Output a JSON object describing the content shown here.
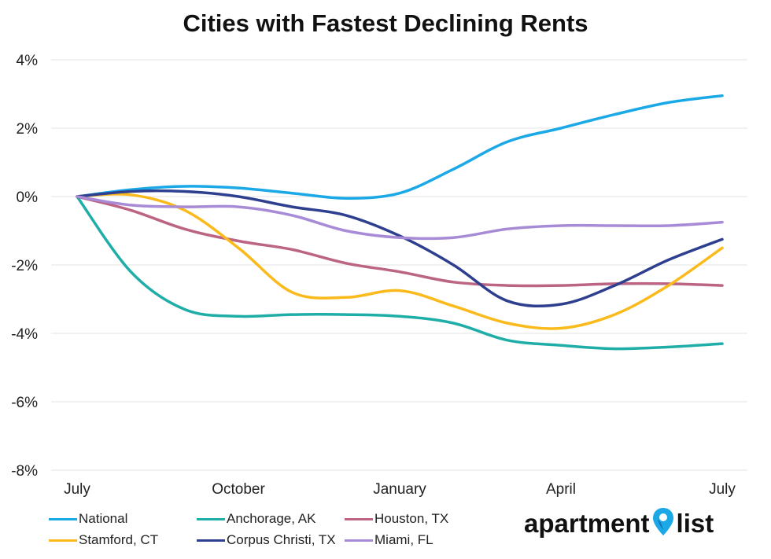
{
  "chart_data": {
    "type": "line",
    "title": "Cities with Fastest Declining Rents",
    "x_ticks": [
      "July",
      "October",
      "January",
      "April",
      "July"
    ],
    "ylim": [
      -8,
      4
    ],
    "y_ticks": [
      4,
      2,
      0,
      -2,
      -4,
      -6,
      -8
    ],
    "y_tick_labels": [
      "4%",
      "2%",
      "0%",
      "-2%",
      "-4%",
      "-6%",
      "-8%"
    ],
    "grid": true,
    "legend_position": "bottom",
    "x_months": [
      0,
      1,
      2,
      3,
      4,
      5,
      6,
      7,
      8,
      9,
      10,
      11,
      12
    ],
    "series": [
      {
        "name": "National",
        "color": "#1aa9e6",
        "values": [
          0,
          0.2,
          0.3,
          0.25,
          0.1,
          -0.05,
          0.1,
          0.8,
          1.6,
          2.0,
          2.4,
          2.75,
          2.95
        ]
      },
      {
        "name": "Anchorage, AK",
        "color": "#1fada8",
        "values": [
          0,
          -2.2,
          -3.3,
          -3.5,
          -3.45,
          -3.45,
          -3.5,
          -3.7,
          -4.2,
          -4.35,
          -4.45,
          -4.4,
          -4.3
        ]
      },
      {
        "name": "Houston, TX",
        "color": "#bb6484",
        "values": [
          0,
          -0.4,
          -0.95,
          -1.3,
          -1.55,
          -1.95,
          -2.2,
          -2.5,
          -2.6,
          -2.6,
          -2.55,
          -2.55,
          -2.6
        ]
      },
      {
        "name": "Stamford, CT",
        "color": "#fbba1c",
        "values": [
          0,
          0.05,
          -0.4,
          -1.5,
          -2.8,
          -2.95,
          -2.75,
          -3.2,
          -3.7,
          -3.85,
          -3.45,
          -2.6,
          -1.5
        ]
      },
      {
        "name": "Corpus Christi, TX",
        "color": "#2e3f8f",
        "values": [
          0,
          0.15,
          0.15,
          0,
          -0.3,
          -0.55,
          -1.15,
          -2.0,
          -3.05,
          -3.15,
          -2.6,
          -1.85,
          -1.25
        ]
      },
      {
        "name": "Miami, FL",
        "color": "#a78bd7",
        "values": [
          0,
          -0.25,
          -0.3,
          -0.3,
          -0.55,
          -1.0,
          -1.2,
          -1.2,
          -0.95,
          -0.85,
          -0.85,
          -0.85,
          -0.75
        ]
      }
    ]
  },
  "legend": {
    "items": [
      {
        "label": "National",
        "color": "#1aa9e6"
      },
      {
        "label": "Anchorage, AK",
        "color": "#1fada8"
      },
      {
        "label": "Houston, TX",
        "color": "#bb6484"
      },
      {
        "label": "Stamford, CT",
        "color": "#fbba1c"
      },
      {
        "label": "Corpus Christi, TX",
        "color": "#2e3f8f"
      },
      {
        "label": "Miami, FL",
        "color": "#a78bd7"
      }
    ]
  },
  "logo": {
    "text_left": "apartment",
    "text_right": "list",
    "icon": "map-pin-icon",
    "pin_color": "#1aa9e6"
  }
}
